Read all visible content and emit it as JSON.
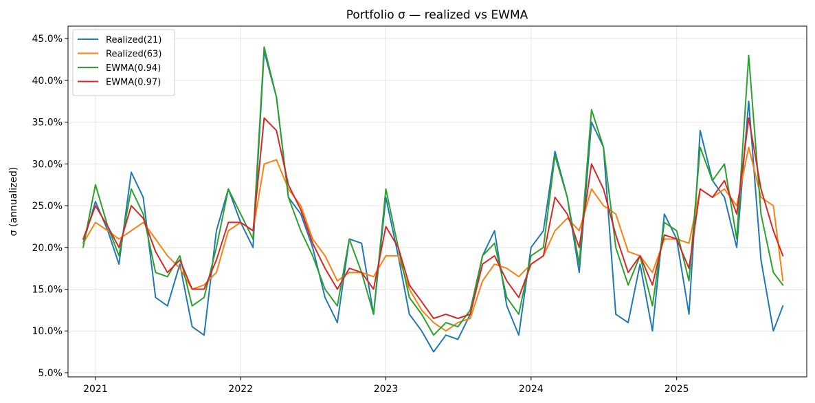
{
  "chart_data": {
    "type": "line",
    "title": "Portfolio σ — realized vs EWMA",
    "xlabel": "",
    "ylabel": "σ (annualized)",
    "x_ticks": [
      "2021",
      "2022",
      "2023",
      "2024",
      "2025"
    ],
    "y_ticks": [
      "5.0%",
      "10.0%",
      "15.0%",
      "20.0%",
      "25.0%",
      "30.0%",
      "35.0%",
      "40.0%",
      "45.0%"
    ],
    "xlim": [
      "2020-10-24",
      "2025-11-24"
    ],
    "ylim": [
      4.5,
      46.5
    ],
    "grid": true,
    "legend_position": "top-left",
    "colors": {
      "Realized(21)": "#1f77b4",
      "Realized(63)": "#ff7f0e",
      "EWMA(0.94)": "#2ca02c",
      "EWMA(0.97)": "#d62728"
    },
    "x": [
      "2020-12-01",
      "2021-01-01",
      "2021-02-01",
      "2021-03-01",
      "2021-04-01",
      "2021-05-01",
      "2021-06-01",
      "2021-07-01",
      "2021-08-01",
      "2021-09-01",
      "2021-10-01",
      "2021-11-01",
      "2021-12-01",
      "2022-01-01",
      "2022-02-01",
      "2022-03-01",
      "2022-04-01",
      "2022-05-01",
      "2022-06-01",
      "2022-07-01",
      "2022-08-01",
      "2022-09-01",
      "2022-10-01",
      "2022-11-01",
      "2022-12-01",
      "2023-01-01",
      "2023-02-01",
      "2023-03-01",
      "2023-04-01",
      "2023-05-01",
      "2023-06-01",
      "2023-07-01",
      "2023-08-01",
      "2023-09-01",
      "2023-10-01",
      "2023-11-01",
      "2023-12-01",
      "2024-01-01",
      "2024-02-01",
      "2024-03-01",
      "2024-04-01",
      "2024-05-01",
      "2024-06-01",
      "2024-07-01",
      "2024-08-01",
      "2024-09-01",
      "2024-10-01",
      "2024-11-01",
      "2024-12-01",
      "2025-01-01",
      "2025-02-01",
      "2025-03-01",
      "2025-04-01",
      "2025-05-01",
      "2025-06-01",
      "2025-07-01",
      "2025-08-01",
      "2025-09-01",
      "2025-09-25"
    ],
    "series": [
      {
        "name": "Realized(21)",
        "values": [
          20.5,
          25.5,
          22.0,
          18.0,
          29.0,
          26.0,
          14.0,
          13.0,
          18.0,
          10.5,
          9.5,
          22.0,
          27.0,
          23.0,
          20.0,
          43.5,
          38.0,
          26.0,
          24.0,
          20.0,
          14.0,
          11.0,
          21.0,
          20.5,
          12.0,
          26.0,
          19.0,
          12.0,
          10.0,
          7.5,
          9.5,
          9.0,
          12.0,
          19.0,
          22.0,
          13.0,
          9.5,
          20.0,
          22.0,
          31.5,
          26.0,
          17.0,
          35.0,
          32.0,
          12.0,
          11.0,
          18.0,
          10.0,
          24.0,
          21.0,
          12.0,
          34.0,
          28.0,
          26.0,
          20.0,
          37.5,
          18.5,
          10.0,
          13.0
        ]
      },
      {
        "name": "Realized(63)",
        "values": [
          20.5,
          23.0,
          22.0,
          21.0,
          22.0,
          23.0,
          21.0,
          19.0,
          17.5,
          15.0,
          15.5,
          17.0,
          22.0,
          23.0,
          22.0,
          30.0,
          30.5,
          27.0,
          25.0,
          21.0,
          19.0,
          16.0,
          17.0,
          17.0,
          16.5,
          19.0,
          19.0,
          15.0,
          12.5,
          11.0,
          10.0,
          11.0,
          11.5,
          16.0,
          18.0,
          17.5,
          16.5,
          18.0,
          19.0,
          22.0,
          23.5,
          22.0,
          27.0,
          25.0,
          24.0,
          19.5,
          19.0,
          17.0,
          21.0,
          21.0,
          20.5,
          27.0,
          26.0,
          27.0,
          25.0,
          32.0,
          26.0,
          25.0,
          16.0
        ]
      },
      {
        "name": "EWMA(0.94)",
        "values": [
          20.0,
          27.5,
          22.5,
          19.0,
          27.0,
          24.0,
          17.0,
          16.5,
          19.0,
          13.0,
          14.0,
          20.0,
          27.0,
          24.0,
          21.0,
          44.0,
          38.0,
          26.0,
          22.0,
          19.0,
          15.0,
          13.0,
          21.0,
          17.0,
          12.0,
          27.0,
          20.0,
          14.0,
          12.0,
          9.5,
          11.0,
          10.5,
          12.5,
          19.0,
          20.5,
          14.0,
          12.0,
          19.0,
          20.0,
          31.0,
          26.0,
          18.0,
          36.5,
          32.0,
          20.0,
          15.5,
          19.0,
          13.0,
          23.0,
          22.0,
          16.0,
          32.0,
          28.0,
          30.0,
          21.0,
          43.0,
          24.0,
          17.0,
          15.5
        ]
      },
      {
        "name": "EWMA(0.97)",
        "values": [
          21.0,
          25.0,
          22.5,
          20.0,
          25.0,
          23.5,
          19.5,
          17.0,
          18.5,
          15.0,
          15.0,
          18.5,
          23.0,
          23.0,
          22.0,
          35.5,
          34.0,
          27.5,
          24.5,
          20.5,
          17.5,
          15.0,
          17.5,
          17.0,
          15.0,
          22.5,
          20.0,
          15.5,
          13.5,
          11.5,
          12.0,
          11.5,
          12.0,
          18.0,
          19.0,
          16.0,
          14.0,
          18.0,
          19.0,
          26.0,
          24.0,
          20.0,
          30.0,
          27.0,
          21.5,
          17.0,
          19.0,
          15.5,
          21.5,
          21.0,
          17.5,
          27.0,
          26.0,
          28.0,
          24.0,
          35.5,
          27.0,
          22.0,
          19.0
        ]
      }
    ]
  }
}
